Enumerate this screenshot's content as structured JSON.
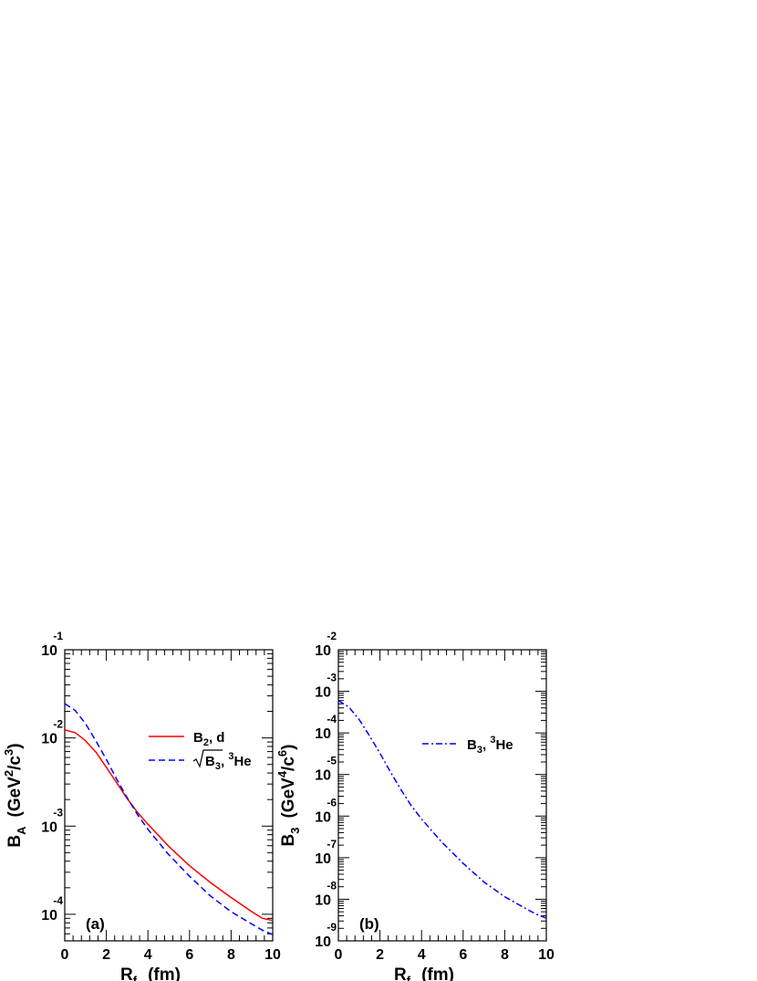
{
  "chart_data": [
    {
      "type": "line",
      "panel_label": "(a)",
      "xlabel_main": "R",
      "xlabel_sub": "f",
      "xlabel_unit": "(fm)",
      "ylabel": {
        "main": "B",
        "sub": "A",
        "unit_open": "(GeV",
        "sup1": "2",
        "unit_mid": "/c",
        "sup2": "3",
        "unit_close": ")"
      },
      "x_scale": "linear",
      "y_scale": "log",
      "xlim": [
        0,
        10
      ],
      "ylim": [
        5e-05,
        0.1
      ],
      "x_ticks": [
        0,
        2,
        4,
        6,
        8,
        10
      ],
      "x_tick_labels": [
        "0",
        "2",
        "4",
        "6",
        "8",
        "10"
      ],
      "y_ticks": [
        {
          "base": "10",
          "exp": "-1",
          "value": 0.1
        },
        {
          "base": "10",
          "exp": "-2",
          "value": 0.01
        },
        {
          "base": "10",
          "exp": "-3",
          "value": 0.001
        },
        {
          "base": "10",
          "exp": "-4",
          "value": 0.0001
        }
      ],
      "legend_position": "upper-right",
      "series": [
        {
          "name": "B2, d",
          "legend": {
            "main": "B",
            "sub": "2",
            "rest": ",  d"
          },
          "color": "#ff0000",
          "dash": "solid",
          "x": [
            0,
            0.5,
            1,
            1.5,
            2,
            2.5,
            3,
            3.5,
            4,
            5,
            6,
            7,
            8,
            9,
            9.5,
            10
          ],
          "y": [
            0.0123,
            0.0115,
            0.0093,
            0.0069,
            0.00465,
            0.0031,
            0.00205,
            0.00143,
            0.00105,
            0.00059,
            0.000355,
            0.00023,
            0.000155,
            0.000107,
            9e-05,
            8.5e-05
          ]
        },
        {
          "name": "√B3, 3He",
          "legend": {
            "main": "B",
            "sub": "3",
            "rest": ",  ",
            "sup": "3",
            "tail": "He"
          },
          "color": "#0000ff",
          "dash": "dashed",
          "x": [
            0,
            0.5,
            1,
            1.5,
            2,
            2.5,
            3,
            3.5,
            4,
            5,
            6,
            7,
            8,
            9,
            9.5,
            10
          ],
          "y": [
            0.0245,
            0.0205,
            0.0145,
            0.0092,
            0.0057,
            0.0034,
            0.0021,
            0.00135,
            0.00092,
            0.000475,
            0.00027,
            0.000162,
            0.000107,
            7.75e-05,
            6.6e-05,
            5.9e-05
          ]
        }
      ]
    },
    {
      "type": "line",
      "panel_label": "(b)",
      "xlabel_main": "R",
      "xlabel_sub": "f",
      "xlabel_unit": "(fm)",
      "ylabel": {
        "main": "B",
        "sub": "3",
        "unit_open": "(GeV",
        "sup1": "4",
        "unit_mid": "/c",
        "sup2": "6",
        "unit_close": ")"
      },
      "x_scale": "linear",
      "y_scale": "log",
      "xlim": [
        0,
        10
      ],
      "ylim": [
        1e-09,
        0.01
      ],
      "x_ticks": [
        0,
        2,
        4,
        6,
        8,
        10
      ],
      "x_tick_labels": [
        "0",
        "2",
        "4",
        "6",
        "8",
        "10"
      ],
      "y_ticks": [
        {
          "base": "10",
          "exp": "-2",
          "value": 0.01
        },
        {
          "base": "10",
          "exp": "-3",
          "value": 0.001
        },
        {
          "base": "10",
          "exp": "-4",
          "value": 0.0001
        },
        {
          "base": "10",
          "exp": "-5",
          "value": 1e-05
        },
        {
          "base": "10",
          "exp": "-6",
          "value": 1e-06
        },
        {
          "base": "10",
          "exp": "-7",
          "value": 1e-07
        },
        {
          "base": "10",
          "exp": "-8",
          "value": 1e-08
        },
        {
          "base": "10",
          "exp": "-9",
          "value": 1e-09
        }
      ],
      "legend_position": "upper-right",
      "series": [
        {
          "name": "B3, 3He",
          "legend": {
            "main": "B",
            "sub": "3",
            "rest": ",  ",
            "sup": "3",
            "tail": "He"
          },
          "color": "#0000ff",
          "dash": "dash-dot",
          "x": [
            0,
            0.5,
            1,
            1.5,
            2,
            2.5,
            3,
            3.5,
            4,
            5,
            6,
            7,
            8,
            9,
            9.5,
            10
          ],
          "y": [
            0.0006,
            0.00042,
            0.00021,
            8.5e-05,
            3.25e-05,
            1.16e-05,
            4.4e-06,
            1.8e-06,
            8.5e-07,
            2.3e-07,
            7.3e-08,
            2.6e-08,
            1.15e-08,
            6e-09,
            4.4e-09,
            3.5e-09
          ]
        }
      ]
    }
  ]
}
